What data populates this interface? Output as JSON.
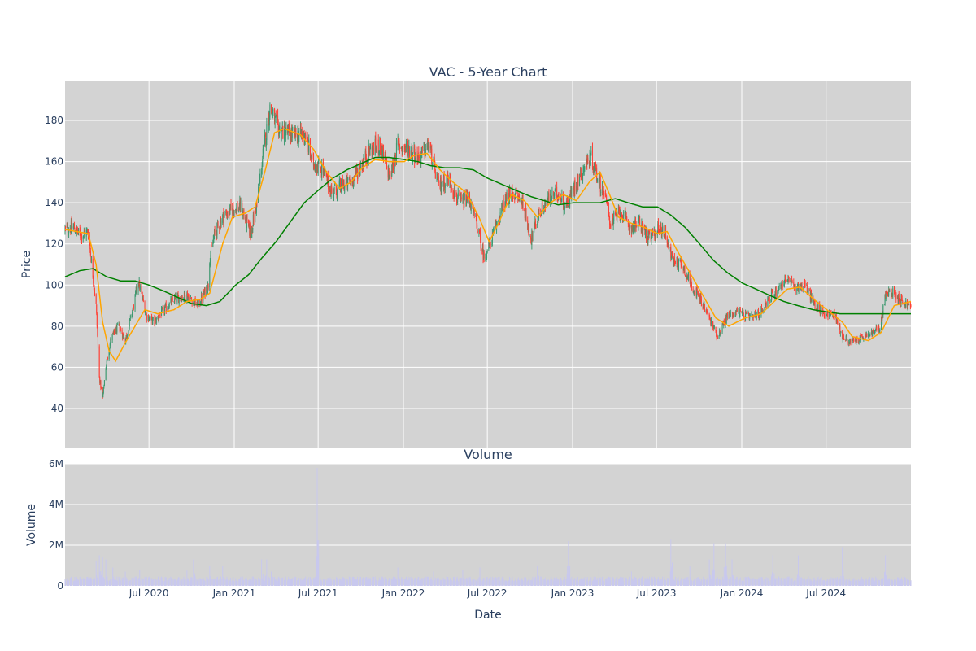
{
  "chart_data": [
    {
      "type": "candlestick",
      "title": "VAC - 5-Year Chart",
      "xlabel": "",
      "ylabel": "Price",
      "ylim": [
        21,
        199
      ],
      "yticks": [
        40,
        60,
        80,
        100,
        120,
        140,
        160,
        180
      ],
      "xlim": [
        "2020-01-02",
        "2024-12-31"
      ],
      "grid": true,
      "legend": "none",
      "colors": {
        "increasing": "#3d9970",
        "decreasing": "#ff4136",
        "ma_short": "#ffa500",
        "ma_long": "#008000",
        "plot_bg": "#d3d3d3",
        "grid": "#ffffff"
      },
      "price_anchors": [
        [
          "2020-01-02",
          127
        ],
        [
          "2020-01-20",
          128
        ],
        [
          "2020-02-05",
          124
        ],
        [
          "2020-02-21",
          126
        ],
        [
          "2020-03-02",
          105
        ],
        [
          "2020-03-09",
          90
        ],
        [
          "2020-03-16",
          55
        ],
        [
          "2020-03-23",
          45
        ],
        [
          "2020-03-30",
          60
        ],
        [
          "2020-04-10",
          74
        ],
        [
          "2020-04-27",
          80
        ],
        [
          "2020-05-11",
          73
        ],
        [
          "2020-05-29",
          90
        ],
        [
          "2020-06-08",
          102
        ],
        [
          "2020-06-26",
          85
        ],
        [
          "2020-07-13",
          82
        ],
        [
          "2020-08-03",
          88
        ],
        [
          "2020-08-24",
          93
        ],
        [
          "2020-09-21",
          95
        ],
        [
          "2020-10-15",
          90
        ],
        [
          "2020-11-06",
          100
        ],
        [
          "2020-11-09",
          113
        ],
        [
          "2020-11-20",
          125
        ],
        [
          "2020-12-07",
          133
        ],
        [
          "2020-12-28",
          137
        ],
        [
          "2021-01-15",
          138
        ],
        [
          "2021-02-05",
          125
        ],
        [
          "2021-02-19",
          140
        ],
        [
          "2021-03-05",
          165
        ],
        [
          "2021-03-19",
          186
        ],
        [
          "2021-04-05",
          176
        ],
        [
          "2021-04-23",
          174
        ],
        [
          "2021-05-14",
          173
        ],
        [
          "2021-06-04",
          173
        ],
        [
          "2021-06-18",
          160
        ],
        [
          "2021-07-09",
          157
        ],
        [
          "2021-07-30",
          145
        ],
        [
          "2021-08-20",
          148
        ],
        [
          "2021-09-10",
          150
        ],
        [
          "2021-10-01",
          158
        ],
        [
          "2021-10-22",
          166
        ],
        [
          "2021-11-12",
          168
        ],
        [
          "2021-12-03",
          152
        ],
        [
          "2021-12-20",
          168
        ],
        [
          "2022-01-14",
          166
        ],
        [
          "2022-02-04",
          162
        ],
        [
          "2022-02-25",
          168
        ],
        [
          "2022-03-18",
          148
        ],
        [
          "2022-04-08",
          152
        ],
        [
          "2022-05-02",
          140
        ],
        [
          "2022-05-23",
          142
        ],
        [
          "2022-06-10",
          128
        ],
        [
          "2022-06-24",
          113
        ],
        [
          "2022-07-15",
          125
        ],
        [
          "2022-08-05",
          140
        ],
        [
          "2022-08-26",
          145
        ],
        [
          "2022-09-16",
          140
        ],
        [
          "2022-10-03",
          122
        ],
        [
          "2022-10-21",
          135
        ],
        [
          "2022-11-11",
          142
        ],
        [
          "2022-12-02",
          145
        ],
        [
          "2022-12-16",
          138
        ],
        [
          "2023-01-06",
          148
        ],
        [
          "2023-01-27",
          158
        ],
        [
          "2023-02-10",
          162
        ],
        [
          "2023-02-24",
          152
        ],
        [
          "2023-03-10",
          145
        ],
        [
          "2023-03-24",
          130
        ],
        [
          "2023-04-14",
          136
        ],
        [
          "2023-05-05",
          128
        ],
        [
          "2023-05-26",
          130
        ],
        [
          "2023-06-16",
          122
        ],
        [
          "2023-07-07",
          128
        ],
        [
          "2023-07-21",
          125
        ],
        [
          "2023-08-04",
          112
        ],
        [
          "2023-08-25",
          110
        ],
        [
          "2023-09-15",
          100
        ],
        [
          "2023-10-06",
          92
        ],
        [
          "2023-10-27",
          82
        ],
        [
          "2023-11-10",
          75
        ],
        [
          "2023-12-01",
          85
        ],
        [
          "2023-12-22",
          87
        ],
        [
          "2024-01-19",
          84
        ],
        [
          "2024-02-09",
          86
        ],
        [
          "2024-02-23",
          92
        ],
        [
          "2024-03-15",
          97
        ],
        [
          "2024-04-05",
          103
        ],
        [
          "2024-04-26",
          99
        ],
        [
          "2024-05-17",
          100
        ],
        [
          "2024-06-07",
          90
        ],
        [
          "2024-06-28",
          86
        ],
        [
          "2024-07-19",
          86
        ],
        [
          "2024-08-05",
          75
        ],
        [
          "2024-08-23",
          72
        ],
        [
          "2024-09-13",
          74
        ],
        [
          "2024-10-04",
          76
        ],
        [
          "2024-10-25",
          79
        ],
        [
          "2024-11-06",
          95
        ],
        [
          "2024-11-22",
          97
        ],
        [
          "2024-12-13",
          92
        ],
        [
          "2024-12-31",
          89
        ]
      ],
      "ma_short_anchors": [
        [
          "2020-01-02",
          127
        ],
        [
          "2020-02-21",
          125
        ],
        [
          "2020-03-09",
          110
        ],
        [
          "2020-03-23",
          82
        ],
        [
          "2020-04-06",
          68
        ],
        [
          "2020-04-20",
          63
        ],
        [
          "2020-05-11",
          72
        ],
        [
          "2020-06-01",
          80
        ],
        [
          "2020-06-22",
          88
        ],
        [
          "2020-07-20",
          86
        ],
        [
          "2020-08-24",
          88
        ],
        [
          "2020-09-21",
          92
        ],
        [
          "2020-10-19",
          93
        ],
        [
          "2020-11-09",
          96
        ],
        [
          "2020-12-07",
          120
        ],
        [
          "2020-12-28",
          133
        ],
        [
          "2021-01-25",
          135
        ],
        [
          "2021-02-15",
          138
        ],
        [
          "2021-03-08",
          155
        ],
        [
          "2021-03-29",
          174
        ],
        [
          "2021-04-19",
          176
        ],
        [
          "2021-05-24",
          173
        ],
        [
          "2021-06-21",
          166
        ],
        [
          "2021-07-19",
          155
        ],
        [
          "2021-08-16",
          147
        ],
        [
          "2021-09-10",
          150
        ],
        [
          "2021-10-04",
          157
        ],
        [
          "2021-11-01",
          161
        ],
        [
          "2021-12-01",
          160
        ],
        [
          "2022-01-03",
          160
        ],
        [
          "2022-01-24",
          163
        ],
        [
          "2022-02-21",
          164
        ],
        [
          "2022-03-21",
          156
        ],
        [
          "2022-04-18",
          150
        ],
        [
          "2022-05-16",
          145
        ],
        [
          "2022-06-13",
          133
        ],
        [
          "2022-07-05",
          121
        ],
        [
          "2022-07-25",
          130
        ],
        [
          "2022-08-22",
          144
        ],
        [
          "2022-09-19",
          141
        ],
        [
          "2022-10-17",
          133
        ],
        [
          "2022-11-14",
          140
        ],
        [
          "2022-12-12",
          144
        ],
        [
          "2023-01-09",
          141
        ],
        [
          "2023-02-06",
          150
        ],
        [
          "2023-03-01",
          155
        ],
        [
          "2023-03-20",
          145
        ],
        [
          "2023-04-10",
          133
        ],
        [
          "2023-05-08",
          130
        ],
        [
          "2023-06-05",
          128
        ],
        [
          "2023-07-03",
          125
        ],
        [
          "2023-07-24",
          126
        ],
        [
          "2023-08-14",
          117
        ],
        [
          "2023-09-11",
          106
        ],
        [
          "2023-10-09",
          95
        ],
        [
          "2023-11-06",
          84
        ],
        [
          "2023-12-04",
          80
        ],
        [
          "2024-01-08",
          84
        ],
        [
          "2024-02-12",
          86
        ],
        [
          "2024-03-11",
          92
        ],
        [
          "2024-04-08",
          98
        ],
        [
          "2024-05-06",
          99
        ],
        [
          "2024-06-10",
          92
        ],
        [
          "2024-07-08",
          87
        ],
        [
          "2024-08-05",
          82
        ],
        [
          "2024-08-26",
          75
        ],
        [
          "2024-09-30",
          73
        ],
        [
          "2024-10-28",
          77
        ],
        [
          "2024-11-25",
          90
        ],
        [
          "2024-12-31",
          92
        ]
      ],
      "ma_long_anchors": [
        [
          "2020-01-02",
          104
        ],
        [
          "2020-02-03",
          107
        ],
        [
          "2020-03-02",
          108
        ],
        [
          "2020-04-01",
          104
        ],
        [
          "2020-05-01",
          102
        ],
        [
          "2020-06-01",
          102
        ],
        [
          "2020-07-01",
          100
        ],
        [
          "2020-08-03",
          97
        ],
        [
          "2020-09-01",
          94
        ],
        [
          "2020-10-01",
          91
        ],
        [
          "2020-11-02",
          90
        ],
        [
          "2020-12-01",
          92
        ],
        [
          "2021-01-04",
          100
        ],
        [
          "2021-02-01",
          105
        ],
        [
          "2021-03-01",
          113
        ],
        [
          "2021-04-01",
          121
        ],
        [
          "2021-05-03",
          131
        ],
        [
          "2021-06-01",
          140
        ],
        [
          "2021-07-01",
          146
        ],
        [
          "2021-08-02",
          152
        ],
        [
          "2021-09-01",
          156
        ],
        [
          "2021-10-01",
          159
        ],
        [
          "2021-11-01",
          162
        ],
        [
          "2021-12-01",
          162
        ],
        [
          "2022-01-03",
          161
        ],
        [
          "2022-02-01",
          160
        ],
        [
          "2022-03-01",
          158
        ],
        [
          "2022-04-01",
          157
        ],
        [
          "2022-05-02",
          157
        ],
        [
          "2022-06-01",
          156
        ],
        [
          "2022-07-01",
          152
        ],
        [
          "2022-08-01",
          149
        ],
        [
          "2022-09-01",
          146
        ],
        [
          "2022-10-03",
          143
        ],
        [
          "2022-11-01",
          141
        ],
        [
          "2022-12-01",
          139
        ],
        [
          "2023-01-03",
          140
        ],
        [
          "2023-02-01",
          140
        ],
        [
          "2023-03-01",
          140
        ],
        [
          "2023-04-03",
          142
        ],
        [
          "2023-05-01",
          140
        ],
        [
          "2023-06-01",
          138
        ],
        [
          "2023-07-03",
          138
        ],
        [
          "2023-08-01",
          134
        ],
        [
          "2023-09-01",
          128
        ],
        [
          "2023-10-02",
          120
        ],
        [
          "2023-11-01",
          112
        ],
        [
          "2023-12-01",
          106
        ],
        [
          "2024-01-02",
          101
        ],
        [
          "2024-02-01",
          98
        ],
        [
          "2024-03-01",
          95
        ],
        [
          "2024-04-01",
          92
        ],
        [
          "2024-05-01",
          90
        ],
        [
          "2024-06-03",
          88
        ],
        [
          "2024-07-01",
          87
        ],
        [
          "2024-08-01",
          86
        ],
        [
          "2024-09-03",
          86
        ],
        [
          "2024-10-01",
          86
        ],
        [
          "2024-11-01",
          86
        ],
        [
          "2024-12-31",
          86
        ]
      ]
    },
    {
      "type": "bar",
      "title": "Volume",
      "xlabel": "Date",
      "ylabel": "Volume",
      "ylim": [
        0,
        6000000
      ],
      "yticks": [
        0,
        2000000,
        4000000,
        6000000
      ],
      "ytick_labels": [
        "0",
        "2M",
        "4M",
        "6M"
      ],
      "xlim": [
        "2020-01-02",
        "2024-12-31"
      ],
      "xticks": [
        "2020-07-01",
        "2021-01-01",
        "2021-07-01",
        "2022-01-01",
        "2022-07-01",
        "2023-01-01",
        "2023-07-01",
        "2024-01-01",
        "2024-07-01"
      ],
      "xtick_labels": [
        "Jul 2020",
        "Jan 2021",
        "Jul 2021",
        "Jan 2022",
        "Jul 2022",
        "Jan 2023",
        "Jul 2023",
        "Jan 2024",
        "Jul 2024"
      ],
      "grid": true,
      "colors": {
        "bar": "#c8c8ee",
        "plot_bg": "#d3d3d3",
        "grid": "#ffffff"
      },
      "base_volume": 400000,
      "volume_spikes": [
        [
          "2020-03-09",
          1200000
        ],
        [
          "2020-03-16",
          1500000
        ],
        [
          "2020-03-23",
          1400000
        ],
        [
          "2020-03-30",
          1300000
        ],
        [
          "2020-04-14",
          900000
        ],
        [
          "2020-05-11",
          700000
        ],
        [
          "2020-06-11",
          800000
        ],
        [
          "2020-09-21",
          750000
        ],
        [
          "2020-10-05",
          1300000
        ],
        [
          "2020-11-09",
          1000000
        ],
        [
          "2020-12-07",
          1000000
        ],
        [
          "2021-03-01",
          1300000
        ],
        [
          "2021-03-12",
          1300000
        ],
        [
          "2021-03-22",
          700000
        ],
        [
          "2021-06-29",
          5800000
        ],
        [
          "2021-12-20",
          900000
        ],
        [
          "2022-03-07",
          700000
        ],
        [
          "2022-05-09",
          800000
        ],
        [
          "2022-06-15",
          900000
        ],
        [
          "2022-10-17",
          1000000
        ],
        [
          "2022-12-23",
          2200000
        ],
        [
          "2023-02-27",
          850000
        ],
        [
          "2023-05-08",
          700000
        ],
        [
          "2023-08-01",
          2300000
        ],
        [
          "2023-09-11",
          950000
        ],
        [
          "2023-10-23",
          1300000
        ],
        [
          "2023-11-02",
          2100000
        ],
        [
          "2023-11-27",
          2100000
        ],
        [
          "2023-12-11",
          1300000
        ],
        [
          "2024-03-08",
          1500000
        ],
        [
          "2024-05-02",
          1500000
        ],
        [
          "2024-08-05",
          1900000
        ],
        [
          "2024-11-06",
          1500000
        ]
      ]
    }
  ]
}
